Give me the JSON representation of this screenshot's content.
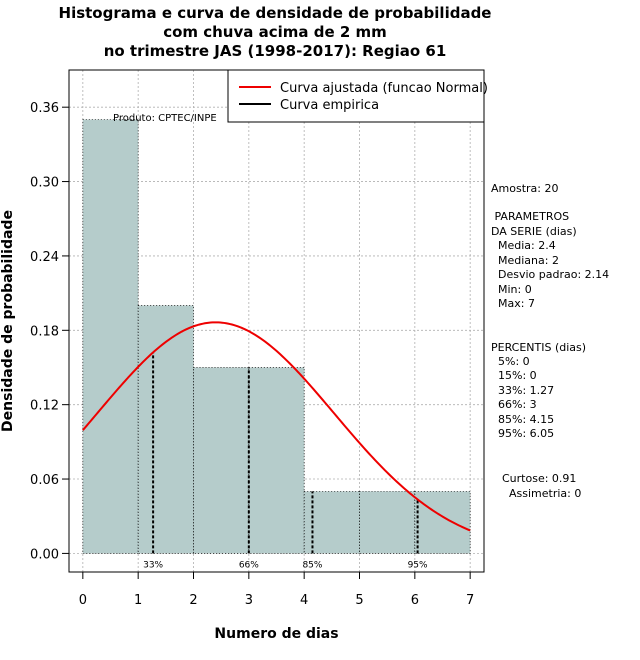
{
  "title_lines": [
    "Histograma e curva de densidade de probabilidade",
    "com chuva acima de 2 mm",
    "no trimestre JAS (1998-2017): Regiao 61"
  ],
  "product_label": "Produto: CPTEC/INPE",
  "chart_data": {
    "type": "histogram",
    "xlabel": "Numero de dias",
    "ylabel": "Densidade de probabilidade",
    "xlim": [
      -0.25,
      7.25
    ],
    "ylim": [
      -0.015,
      0.39
    ],
    "xticks": [
      0,
      1,
      2,
      3,
      4,
      5,
      6,
      7
    ],
    "yticks": [
      "0.00",
      "0.06",
      "0.12",
      "0.18",
      "0.24",
      "0.30",
      "0.36"
    ],
    "bins": [
      {
        "from": 0,
        "to": 1,
        "density": 0.35
      },
      {
        "from": 1,
        "to": 2,
        "density": 0.2
      },
      {
        "from": 2,
        "to": 3,
        "density": 0.15
      },
      {
        "from": 3,
        "to": 4,
        "density": 0.15
      },
      {
        "from": 4,
        "to": 5,
        "density": 0.05
      },
      {
        "from": 5,
        "to": 6,
        "density": 0.05
      },
      {
        "from": 6,
        "to": 7,
        "density": 0.05
      }
    ],
    "normal_fit": {
      "mean": 2.4,
      "sd": 2.14,
      "x_range": [
        0,
        7
      ]
    },
    "percentile_markers": [
      {
        "label": "33%",
        "x": 1.27
      },
      {
        "label": "66%",
        "x": 3
      },
      {
        "label": "85%",
        "x": 4.15
      },
      {
        "label": "95%",
        "x": 6.05
      }
    ],
    "legend": {
      "position": "top-right",
      "entries": [
        {
          "label": "Curva ajustada (funcao Normal)",
          "color": "#ee0000"
        },
        {
          "label": "Curva empirica",
          "color": "#000000"
        }
      ]
    },
    "grid": true
  },
  "colors": {
    "bar_fill": "#b5cccb",
    "curve": "#ee0000",
    "grid": "#b0b0b0"
  },
  "stats": {
    "amostra": "Amostra: 20",
    "param_header": " PARAMETROS\nDA SERIE (dias)",
    "param_lines": [
      "Media: 2.4",
      "Mediana: 2",
      "Desvio padrao: 2.14",
      "Min: 0",
      "Max: 7"
    ],
    "perc_header": "PERCENTIS (dias)",
    "perc_lines": [
      "5%: 0",
      "15%: 0",
      "33%: 1.27",
      "66%: 3",
      "85%: 4.15",
      "95%: 6.05"
    ],
    "curtose": "Curtose: 0.91",
    "assimetria": "Assimetria: 0"
  }
}
